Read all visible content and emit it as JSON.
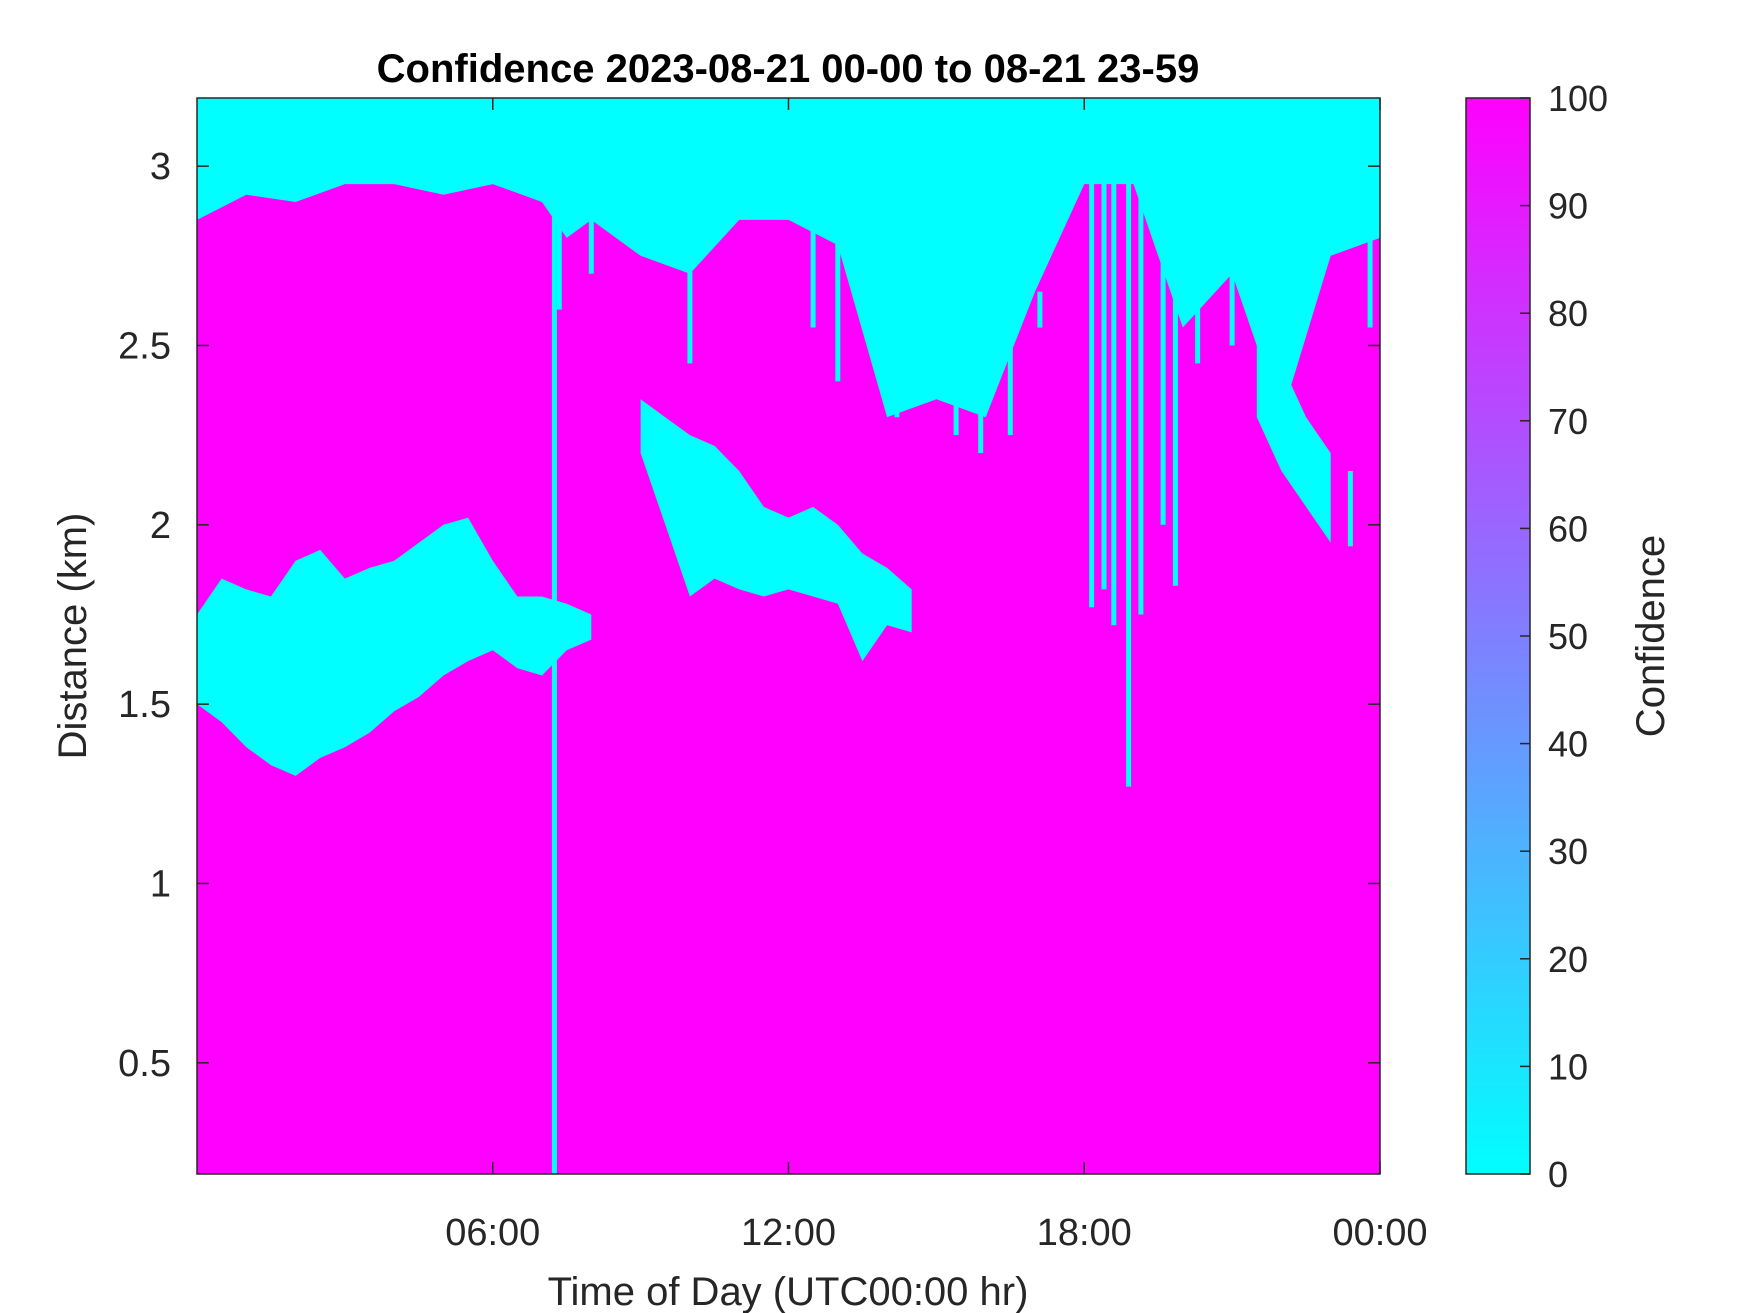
{
  "chart_data": {
    "type": "heatmap",
    "title": "Confidence 2023-08-21 00-00 to 08-21 23-59",
    "xlabel": "Time of Day (UTC00:00 hr)",
    "ylabel": "Distance (km)",
    "x_unit": "hour of day",
    "y_unit": "km",
    "xlim": [
      0,
      24
    ],
    "ylim": [
      0.19,
      3.19
    ],
    "x_ticks": [
      {
        "value": 6,
        "label": "06:00"
      },
      {
        "value": 12,
        "label": "12:00"
      },
      {
        "value": 18,
        "label": "18:00"
      },
      {
        "value": 24,
        "label": "00:00"
      }
    ],
    "y_ticks": [
      {
        "value": 0.5,
        "label": "0.5"
      },
      {
        "value": 1,
        "label": "1"
      },
      {
        "value": 1.5,
        "label": "1.5"
      },
      {
        "value": 2,
        "label": "2"
      },
      {
        "value": 2.5,
        "label": "2.5"
      },
      {
        "value": 3,
        "label": "3"
      }
    ],
    "colorbar": {
      "label": "Confidence",
      "range": [
        0,
        100
      ],
      "ticks": [
        0,
        10,
        20,
        30,
        40,
        50,
        60,
        70,
        80,
        90,
        100
      ],
      "colormap": "cool",
      "low_color": "#00ffff",
      "high_color": "#ff00ff",
      "placement": "right"
    },
    "background_value": 100,
    "low_confidence_value": 0,
    "grid": false,
    "low_confidence_regions": [
      {
        "x": [
          0.0,
          1.0,
          2.0,
          3.0,
          4.0,
          5.0,
          6.0,
          7.0,
          7.5,
          8.0,
          9.0,
          10.0,
          11.0,
          12.0,
          13.0,
          14.0,
          15.0,
          16.0,
          17.0,
          18.0,
          19.0,
          20.0,
          21.0,
          22.0,
          23.0,
          24.0
        ],
        "y_bottom": [
          2.85,
          2.92,
          2.9,
          2.95,
          2.95,
          2.92,
          2.95,
          2.9,
          2.8,
          2.85,
          2.75,
          2.7,
          2.85,
          2.85,
          2.78,
          2.3,
          2.35,
          2.3,
          2.65,
          2.95,
          2.95,
          2.55,
          2.7,
          2.3,
          2.75,
          2.8
        ],
        "y_top": [
          3.19,
          3.19,
          3.19,
          3.19,
          3.19,
          3.19,
          3.19,
          3.19,
          3.19,
          3.19,
          3.19,
          3.19,
          3.19,
          3.19,
          3.19,
          3.19,
          3.19,
          3.19,
          3.19,
          3.19,
          3.19,
          3.19,
          3.19,
          3.19,
          3.19,
          3.19
        ]
      },
      {
        "x": [
          0.0,
          0.5,
          1.0,
          1.5,
          2.0,
          2.5,
          3.0,
          3.5,
          4.0,
          4.5,
          5.0,
          5.5,
          6.0,
          6.5,
          7.0,
          7.5,
          8.0
        ],
        "y_bottom": [
          1.5,
          1.45,
          1.38,
          1.33,
          1.3,
          1.35,
          1.38,
          1.42,
          1.48,
          1.52,
          1.58,
          1.62,
          1.65,
          1.6,
          1.58,
          1.65,
          1.68
        ],
        "y_top": [
          1.75,
          1.85,
          1.82,
          1.8,
          1.9,
          1.93,
          1.85,
          1.88,
          1.9,
          1.95,
          2.0,
          2.02,
          1.9,
          1.8,
          1.8,
          1.78,
          1.75
        ]
      },
      {
        "x": [
          9.0,
          9.5,
          10.0,
          10.5,
          11.0,
          11.5,
          12.0,
          12.5,
          13.0,
          13.5,
          14.0,
          14.5
        ],
        "y_bottom": [
          2.2,
          2.0,
          1.8,
          1.85,
          1.82,
          1.8,
          1.82,
          1.8,
          1.78,
          1.62,
          1.72,
          1.7
        ],
        "y_top": [
          2.35,
          2.3,
          2.25,
          2.22,
          2.15,
          2.05,
          2.02,
          2.05,
          2.0,
          1.92,
          1.88,
          1.82
        ]
      },
      {
        "x": [
          21.5,
          22.0,
          22.5,
          23.0
        ],
        "y_bottom": [
          2.3,
          2.15,
          2.05,
          1.95
        ],
        "y_top": [
          2.55,
          2.45,
          2.3,
          2.2
        ]
      }
    ],
    "low_confidence_streaks": [
      {
        "x": 7.25,
        "y_bottom": 0.19,
        "y_top": 3.19
      },
      {
        "x": 7.35,
        "y_bottom": 2.6,
        "y_top": 3.19
      },
      {
        "x": 8.0,
        "y_bottom": 2.7,
        "y_top": 3.19
      },
      {
        "x": 10.0,
        "y_bottom": 2.45,
        "y_top": 3.19
      },
      {
        "x": 12.5,
        "y_bottom": 2.55,
        "y_top": 3.19
      },
      {
        "x": 13.0,
        "y_bottom": 2.4,
        "y_top": 3.19
      },
      {
        "x": 14.2,
        "y_bottom": 2.3,
        "y_top": 2.9
      },
      {
        "x": 14.8,
        "y_bottom": 2.35,
        "y_top": 2.9
      },
      {
        "x": 15.4,
        "y_bottom": 2.25,
        "y_top": 2.85
      },
      {
        "x": 15.9,
        "y_bottom": 2.2,
        "y_top": 2.8
      },
      {
        "x": 16.5,
        "y_bottom": 2.25,
        "y_top": 2.7
      },
      {
        "x": 17.1,
        "y_bottom": 2.55,
        "y_top": 2.65
      },
      {
        "x": 18.15,
        "y_bottom": 1.77,
        "y_top": 3.19
      },
      {
        "x": 18.4,
        "y_bottom": 1.82,
        "y_top": 3.19
      },
      {
        "x": 18.6,
        "y_bottom": 1.72,
        "y_top": 3.19
      },
      {
        "x": 18.9,
        "y_bottom": 1.27,
        "y_top": 3.19
      },
      {
        "x": 19.15,
        "y_bottom": 1.75,
        "y_top": 3.19
      },
      {
        "x": 19.6,
        "y_bottom": 2.0,
        "y_top": 3.19
      },
      {
        "x": 19.85,
        "y_bottom": 1.83,
        "y_top": 3.19
      },
      {
        "x": 20.3,
        "y_bottom": 2.45,
        "y_top": 3.19
      },
      {
        "x": 21.0,
        "y_bottom": 2.5,
        "y_top": 3.19
      },
      {
        "x": 21.9,
        "y_bottom": 2.2,
        "y_top": 3.19
      },
      {
        "x": 23.4,
        "y_bottom": 1.94,
        "y_top": 2.15
      },
      {
        "x": 23.8,
        "y_bottom": 2.55,
        "y_top": 3.19
      }
    ]
  }
}
